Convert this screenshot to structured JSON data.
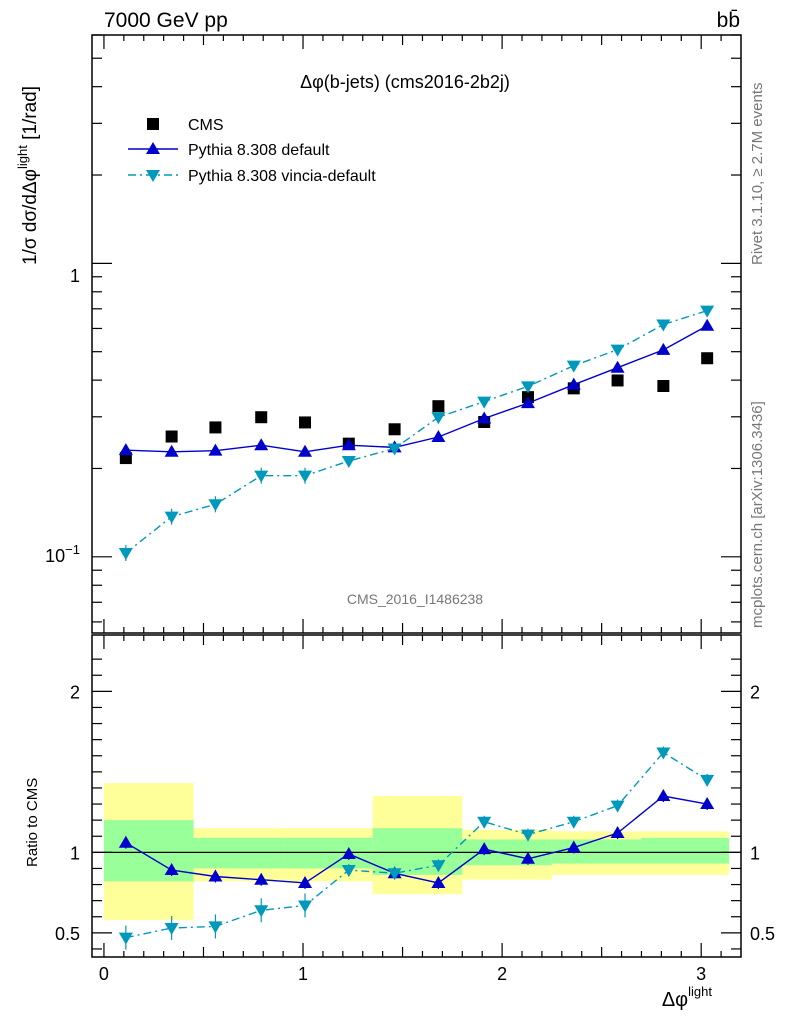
{
  "header": {
    "energy": "7000 GeV pp",
    "process": "bb̄"
  },
  "side_labels": {
    "rivet": "Rivet 3.1.10, ≥ 2.7M events",
    "mcplots": "mcplots.cern.ch [arXiv:1306.3436]"
  },
  "chart_data": [
    {
      "type": "line",
      "panel": "main",
      "title": "Δφ(b-jets) (cms2016-2b2j)",
      "watermark": "CMS_2016_I1486238",
      "ylabel": "1/σ dσ/dΔφ^light [1/rad]",
      "xlabel": "Δφ^light",
      "yscale": "log",
      "xlim": [
        -0.06,
        3.2
      ],
      "ylim": [
        0.055,
        6.0
      ],
      "ytick_labels": [
        "10^-1",
        "1"
      ],
      "legend_position": "top-left",
      "x": [
        0.11,
        0.34,
        0.56,
        0.79,
        1.01,
        1.23,
        1.46,
        1.68,
        1.91,
        2.13,
        2.36,
        2.58,
        2.81,
        3.03
      ],
      "series": [
        {
          "name": "CMS",
          "style": "square markers",
          "color": "#000000",
          "values": [
            0.217,
            0.257,
            0.276,
            0.299,
            0.287,
            0.243,
            0.272,
            0.326,
            0.288,
            0.35,
            0.375,
            0.399,
            0.382,
            0.475
          ]
        },
        {
          "name": "Pythia 8.308 default",
          "style": "solid line, triangle-up markers",
          "color": "#0000cc",
          "values": [
            0.231,
            0.228,
            0.23,
            0.24,
            0.228,
            0.24,
            0.236,
            0.256,
            0.296,
            0.334,
            0.386,
            0.441,
            0.507,
            0.613
          ]
        },
        {
          "name": "Pythia 8.308 vincia-default",
          "style": "dash-dot line, triangle-down markers",
          "color": "#0099bb",
          "values": [
            0.103,
            0.137,
            0.151,
            0.189,
            0.189,
            0.212,
            0.234,
            0.299,
            0.338,
            0.381,
            0.448,
            0.508,
            0.619,
            0.69
          ]
        }
      ]
    },
    {
      "type": "line",
      "panel": "ratio",
      "ylabel": "Ratio to CMS",
      "xlabel": "Δφ^light",
      "xlim": [
        -0.06,
        3.2
      ],
      "ylim": [
        0.35,
        2.35
      ],
      "x_ticks": [
        0,
        1,
        2,
        3
      ],
      "y_ticks": [
        0.5,
        1,
        2
      ],
      "x": [
        0.11,
        0.34,
        0.56,
        0.79,
        1.01,
        1.23,
        1.46,
        1.68,
        1.91,
        2.13,
        2.36,
        2.58,
        2.81,
        3.03
      ],
      "bin_edges": [
        0.0,
        0.45,
        0.9,
        1.35,
        1.8,
        2.25,
        2.7,
        3.14
      ],
      "band_colors": {
        "inner": "#99ff99",
        "outer": "#ffff99"
      },
      "inner_band": {
        "low": [
          0.82,
          0.9,
          0.9,
          0.86,
          0.92,
          0.93,
          0.93
        ],
        "high": [
          1.2,
          1.09,
          1.09,
          1.15,
          1.08,
          1.08,
          1.09
        ]
      },
      "outer_band": {
        "low": [
          0.58,
          0.82,
          0.82,
          0.74,
          0.83,
          0.86,
          0.86
        ],
        "high": [
          1.43,
          1.15,
          1.15,
          1.35,
          1.14,
          1.13,
          1.13
        ]
      },
      "reference_line": 1,
      "series": [
        {
          "name": "Pythia 8.308 default",
          "color": "#0000cc",
          "values": [
            1.06,
            0.89,
            0.85,
            0.83,
            0.81,
            0.99,
            0.87,
            0.81,
            1.02,
            0.96,
            1.03,
            1.12,
            1.35,
            1.3
          ]
        },
        {
          "name": "Pythia 8.308 vincia-default",
          "color": "#0099bb",
          "values": [
            0.47,
            0.53,
            0.54,
            0.64,
            0.67,
            0.89,
            0.87,
            0.92,
            1.19,
            1.11,
            1.19,
            1.29,
            1.62,
            1.45
          ]
        }
      ]
    }
  ]
}
